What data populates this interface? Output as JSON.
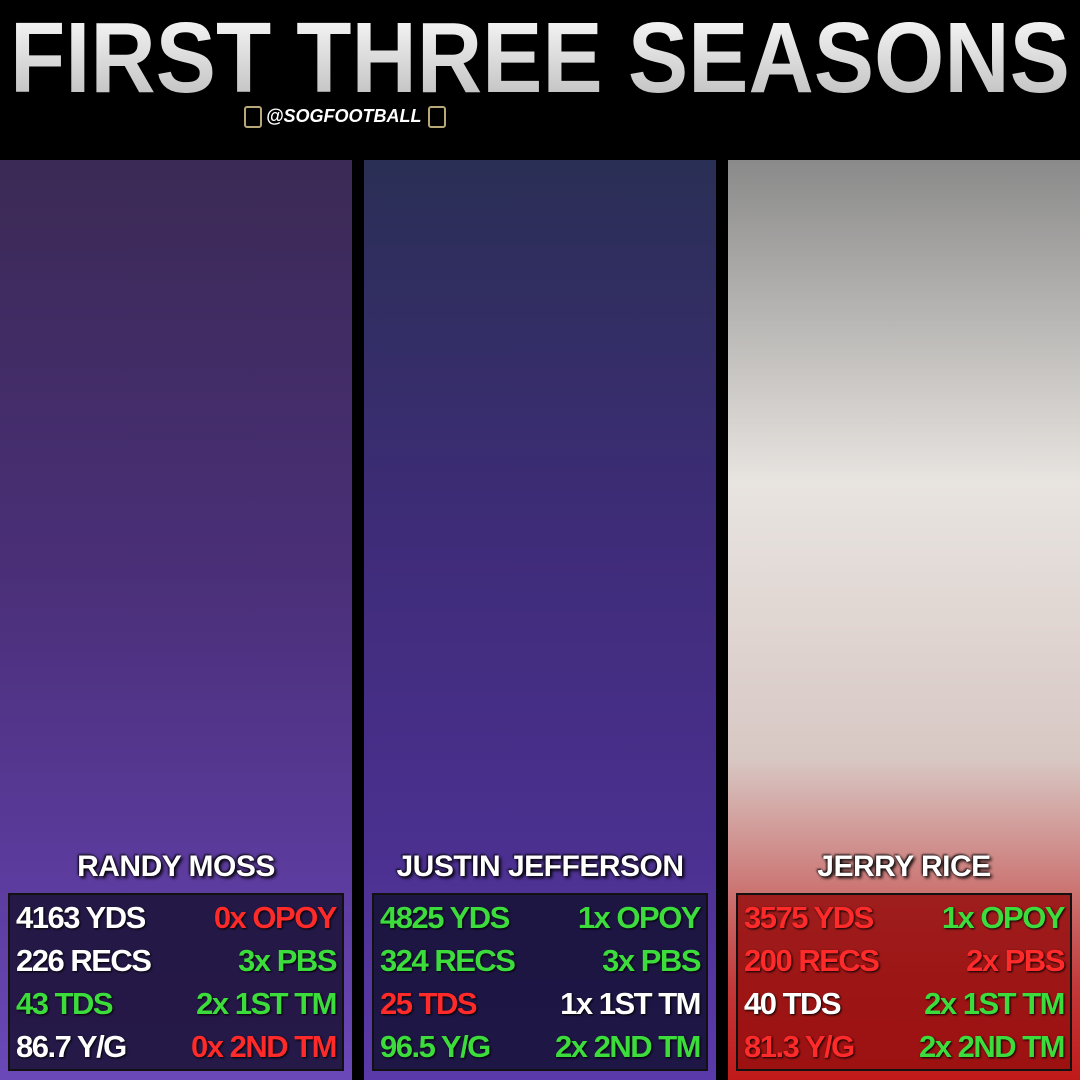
{
  "header": {
    "title": "FIRST THREE SEASONS",
    "handle": "@SOGFOOTBALL"
  },
  "players": [
    {
      "name": "RANDY MOSS",
      "left": [
        {
          "text": "4163 YDS",
          "color": "white"
        },
        {
          "text": "226 RECS",
          "color": "white"
        },
        {
          "text": "43 TDS",
          "color": "green"
        },
        {
          "text": "86.7 Y/G",
          "color": "white"
        }
      ],
      "right": [
        {
          "text": "0x OPOY",
          "color": "red"
        },
        {
          "text": "3x PBS",
          "color": "green"
        },
        {
          "text": "2x 1ST TM",
          "color": "green"
        },
        {
          "text": "0x 2ND TM",
          "color": "red"
        }
      ]
    },
    {
      "name": "JUSTIN JEFFERSON",
      "left": [
        {
          "text": "4825 YDS",
          "color": "green"
        },
        {
          "text": "324 RECS",
          "color": "green"
        },
        {
          "text": "25 TDS",
          "color": "red"
        },
        {
          "text": "96.5 Y/G",
          "color": "green"
        }
      ],
      "right": [
        {
          "text": "1x OPOY",
          "color": "green"
        },
        {
          "text": "3x PBS",
          "color": "green"
        },
        {
          "text": "1x 1ST TM",
          "color": "white"
        },
        {
          "text": "2x 2ND TM",
          "color": "green"
        }
      ]
    },
    {
      "name": "JERRY RICE",
      "left": [
        {
          "text": "3575 YDS",
          "color": "red"
        },
        {
          "text": "200 RECS",
          "color": "red"
        },
        {
          "text": "40 TDS",
          "color": "white"
        },
        {
          "text": "81.3 Y/G",
          "color": "red"
        }
      ],
      "right": [
        {
          "text": "1x OPOY",
          "color": "green"
        },
        {
          "text": "2x PBS",
          "color": "red"
        },
        {
          "text": "2x 1ST TM",
          "color": "green"
        },
        {
          "text": "2x 2ND TM",
          "color": "green"
        }
      ]
    }
  ]
}
